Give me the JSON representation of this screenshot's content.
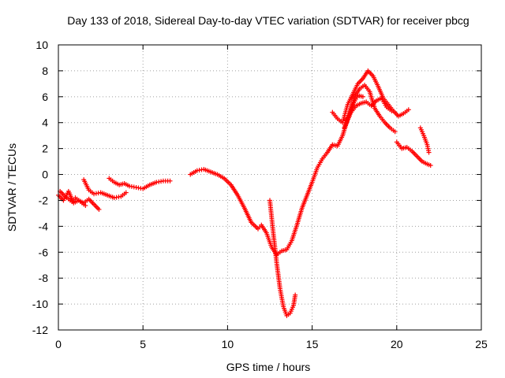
{
  "chart_data": {
    "type": "scatter",
    "title": "Day 133 of 2018, Sidereal Day-to-day VTEC variation (SDTVAR) for receiver pbcg",
    "xlabel": "GPS time / hours",
    "ylabel": "SDTVAR / TECUs",
    "xlim": [
      0,
      25
    ],
    "ylim": [
      -12,
      10
    ],
    "xticks": [
      0,
      5,
      10,
      15,
      20,
      25
    ],
    "yticks": [
      -12,
      -10,
      -8,
      -6,
      -4,
      -2,
      0,
      2,
      4,
      6,
      8,
      10
    ],
    "grid": true,
    "marker": "+",
    "color": "#ff0000",
    "series": [
      {
        "name": "seg-early-1",
        "x": [
          0.0,
          0.3,
          0.6,
          0.9,
          1.2,
          1.5,
          1.8,
          2.1,
          2.4
        ],
        "y": [
          -1.6,
          -2.0,
          -1.3,
          -2.2,
          -2.0,
          -2.2,
          -1.9,
          -2.3,
          -2.7
        ]
      },
      {
        "name": "seg-early-2",
        "x": [
          0.1,
          0.4,
          0.8,
          1.0,
          1.3,
          1.6
        ],
        "y": [
          -1.3,
          -1.7,
          -2.1,
          -1.8,
          -2.1,
          -2.4
        ]
      },
      {
        "name": "seg-early-3",
        "x": [
          1.5,
          1.8,
          2.1,
          2.5,
          2.9,
          3.3,
          3.7,
          4.0
        ],
        "y": [
          -0.4,
          -1.2,
          -1.5,
          -1.4,
          -1.6,
          -1.8,
          -1.7,
          -1.4
        ]
      },
      {
        "name": "seg-early-4",
        "x": [
          3.0,
          3.3,
          3.6,
          3.9,
          4.2,
          4.6,
          5.0,
          5.4,
          5.8,
          6.2,
          6.6
        ],
        "y": [
          -0.3,
          -0.6,
          -0.8,
          -0.7,
          -0.9,
          -1.0,
          -1.1,
          -0.8,
          -0.6,
          -0.5,
          -0.5
        ]
      },
      {
        "name": "seg-day",
        "x": [
          7.8,
          8.2,
          8.6,
          9.0,
          9.4,
          9.8,
          10.2,
          10.6,
          11.0,
          11.4,
          11.8,
          12.0,
          12.3,
          12.6,
          12.9,
          13.2,
          13.5,
          13.8,
          14.1,
          14.4,
          14.7,
          15.0,
          15.3,
          15.6,
          15.9,
          16.2,
          16.5,
          16.8,
          17.1,
          17.4,
          17.7,
          18.0
        ],
        "y": [
          0.0,
          0.3,
          0.4,
          0.2,
          0.0,
          -0.3,
          -0.8,
          -1.6,
          -2.6,
          -3.7,
          -4.2,
          -3.9,
          -4.5,
          -5.6,
          -6.2,
          -5.9,
          -5.8,
          -5.1,
          -3.9,
          -2.6,
          -1.6,
          -0.6,
          0.5,
          1.2,
          1.7,
          2.3,
          2.2,
          3.0,
          4.3,
          5.4,
          6.1,
          6.0
        ]
      },
      {
        "name": "seg-dip",
        "x": [
          12.5,
          12.7,
          12.9,
          13.1,
          13.3,
          13.5,
          13.7,
          13.9,
          14.0
        ],
        "y": [
          -2.0,
          -4.5,
          -6.8,
          -8.8,
          -10.2,
          -10.9,
          -10.7,
          -10.1,
          -9.3
        ]
      },
      {
        "name": "seg-upper",
        "x": [
          16.2,
          16.5,
          16.8,
          17.1,
          17.4,
          17.7,
          18.0,
          18.3,
          18.6,
          18.9,
          19.2,
          19.5,
          19.8,
          20.1,
          20.4,
          20.7
        ],
        "y": [
          4.8,
          4.3,
          4.0,
          5.4,
          6.2,
          7.0,
          7.4,
          8.0,
          7.6,
          6.8,
          5.9,
          5.4,
          4.9,
          4.5,
          4.7,
          5.0
        ]
      },
      {
        "name": "seg-upper-2",
        "x": [
          17.0,
          17.3,
          17.6,
          17.9,
          18.2,
          18.5,
          18.8,
          19.1,
          19.4,
          19.7
        ],
        "y": [
          4.2,
          4.8,
          5.3,
          5.5,
          5.6,
          5.3,
          5.7,
          5.9,
          5.2,
          4.9
        ]
      },
      {
        "name": "seg-lower",
        "x": [
          16.9,
          17.2,
          17.5,
          17.8,
          18.1,
          18.4,
          18.7,
          19.0,
          19.3,
          19.6,
          19.9
        ],
        "y": [
          3.6,
          4.5,
          6.0,
          6.6,
          6.9,
          6.4,
          5.1,
          4.5,
          4.0,
          3.6,
          3.3
        ]
      },
      {
        "name": "seg-late",
        "x": [
          20.0,
          20.3,
          20.6,
          20.9,
          21.2,
          21.5,
          21.8,
          22.0
        ],
        "y": [
          2.5,
          2.0,
          2.1,
          1.8,
          1.4,
          1.0,
          0.8,
          0.7
        ]
      },
      {
        "name": "seg-late-2",
        "x": [
          21.4,
          21.6,
          21.8,
          21.9
        ],
        "y": [
          3.6,
          3.0,
          2.3,
          1.7
        ]
      }
    ]
  }
}
